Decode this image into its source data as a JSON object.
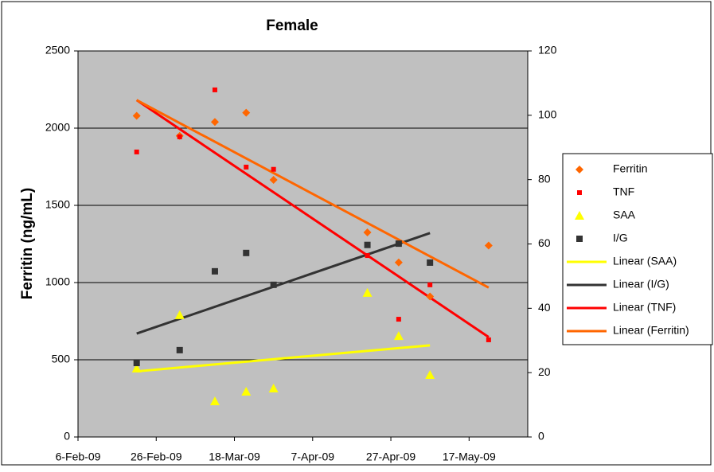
{
  "chart_data": {
    "type": "scatter",
    "title": "Female",
    "ylabel": "Ferritin (ng/mL)",
    "x": [
      "2009-02-21",
      "2009-03-04",
      "2009-03-13",
      "2009-03-21",
      "2009-03-28",
      "2009-04-21",
      "2009-04-29",
      "2009-05-07",
      "2009-05-22"
    ],
    "xlim": [
      "2009-02-06",
      "2009-06-01"
    ],
    "xticks": [
      {
        "value": "2009-02-06",
        "label": "6-Feb-09"
      },
      {
        "value": "2009-02-26",
        "label": "26-Feb-09"
      },
      {
        "value": "2009-03-18",
        "label": "18-Mar-09"
      },
      {
        "value": "2009-04-07",
        "label": "7-Apr-09"
      },
      {
        "value": "2009-04-27",
        "label": "27-Apr-09"
      },
      {
        "value": "2009-05-17",
        "label": "17-May-09"
      }
    ],
    "ylim": [
      0,
      2500
    ],
    "yticks": [
      0,
      500,
      1000,
      1500,
      2000,
      2500
    ],
    "y2lim": [
      0,
      120
    ],
    "y2ticks": [
      0,
      20,
      40,
      60,
      80,
      100,
      120
    ],
    "grid": true,
    "legend": "right",
    "series": [
      {
        "name": "Ferritin",
        "color": "#ff6600",
        "marker": "diamond",
        "values": [
          2080,
          1950,
          2040,
          2100,
          1665,
          1325,
          1130,
          910,
          1240
        ],
        "trendline": {
          "name": "Linear (Ferritin)",
          "color": "#ff6600"
        }
      },
      {
        "name": "TNF",
        "color": "#ff0000",
        "marker": "small-square",
        "axis": "y2",
        "values": [
          88.6,
          93.3,
          107.9,
          83.9,
          83.2,
          56.4,
          36.6,
          47.3,
          30.2
        ],
        "trendline": {
          "name": "Linear (TNF)",
          "color": "#ff0000"
        }
      },
      {
        "name": "SAA",
        "color": "#ffff00",
        "marker": "triangle",
        "axis": "y2",
        "values": [
          21.3,
          37.9,
          11.1,
          14.1,
          15.1,
          44.8,
          31.4,
          19.3,
          null
        ],
        "trendline": {
          "name": "Linear (SAA)",
          "color": "#ffff00"
        }
      },
      {
        "name": "I/G",
        "color": "#333333",
        "marker": "square",
        "axis": "y2",
        "values": [
          23.0,
          27.0,
          51.5,
          57.2,
          47.3,
          59.7,
          60.1,
          54.2,
          null
        ],
        "trendline": {
          "name": "Linear (I/G)",
          "color": "#333333"
        }
      }
    ]
  }
}
